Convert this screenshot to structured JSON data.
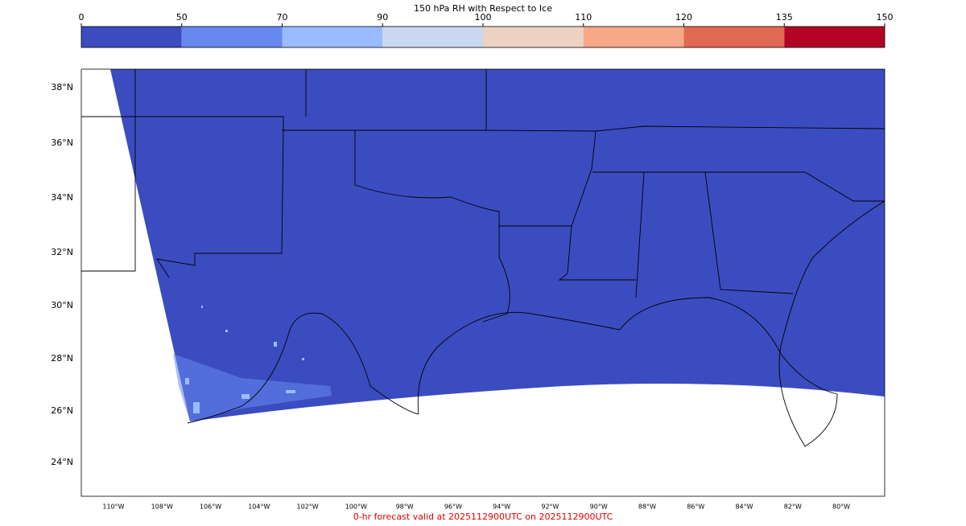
{
  "colorbar": {
    "title": "150 hPa RH with Respect to Ice",
    "ticks": [
      0,
      50,
      70,
      90,
      100,
      110,
      120,
      135,
      150
    ],
    "colors": [
      "#3b4cc0",
      "#6788ee",
      "#9abbff",
      "#c9d7f0",
      "#edd1c2",
      "#f7a889",
      "#e26952",
      "#b40426"
    ]
  },
  "map": {
    "lat_labels": [
      "38°N",
      "36°N",
      "34°N",
      "32°N",
      "30°N",
      "28°N",
      "26°N",
      "24°N"
    ],
    "lon_labels": [
      "110°W",
      "108°W",
      "106°W",
      "104°W",
      "102°W",
      "100°W",
      "98°W",
      "96°W",
      "94°W",
      "92°W",
      "90°W",
      "88°W",
      "86°W",
      "84°W",
      "82°W",
      "80°W"
    ]
  },
  "footer": "0-hr forecast valid at 2025112900UTC on 2025112900UTC"
}
